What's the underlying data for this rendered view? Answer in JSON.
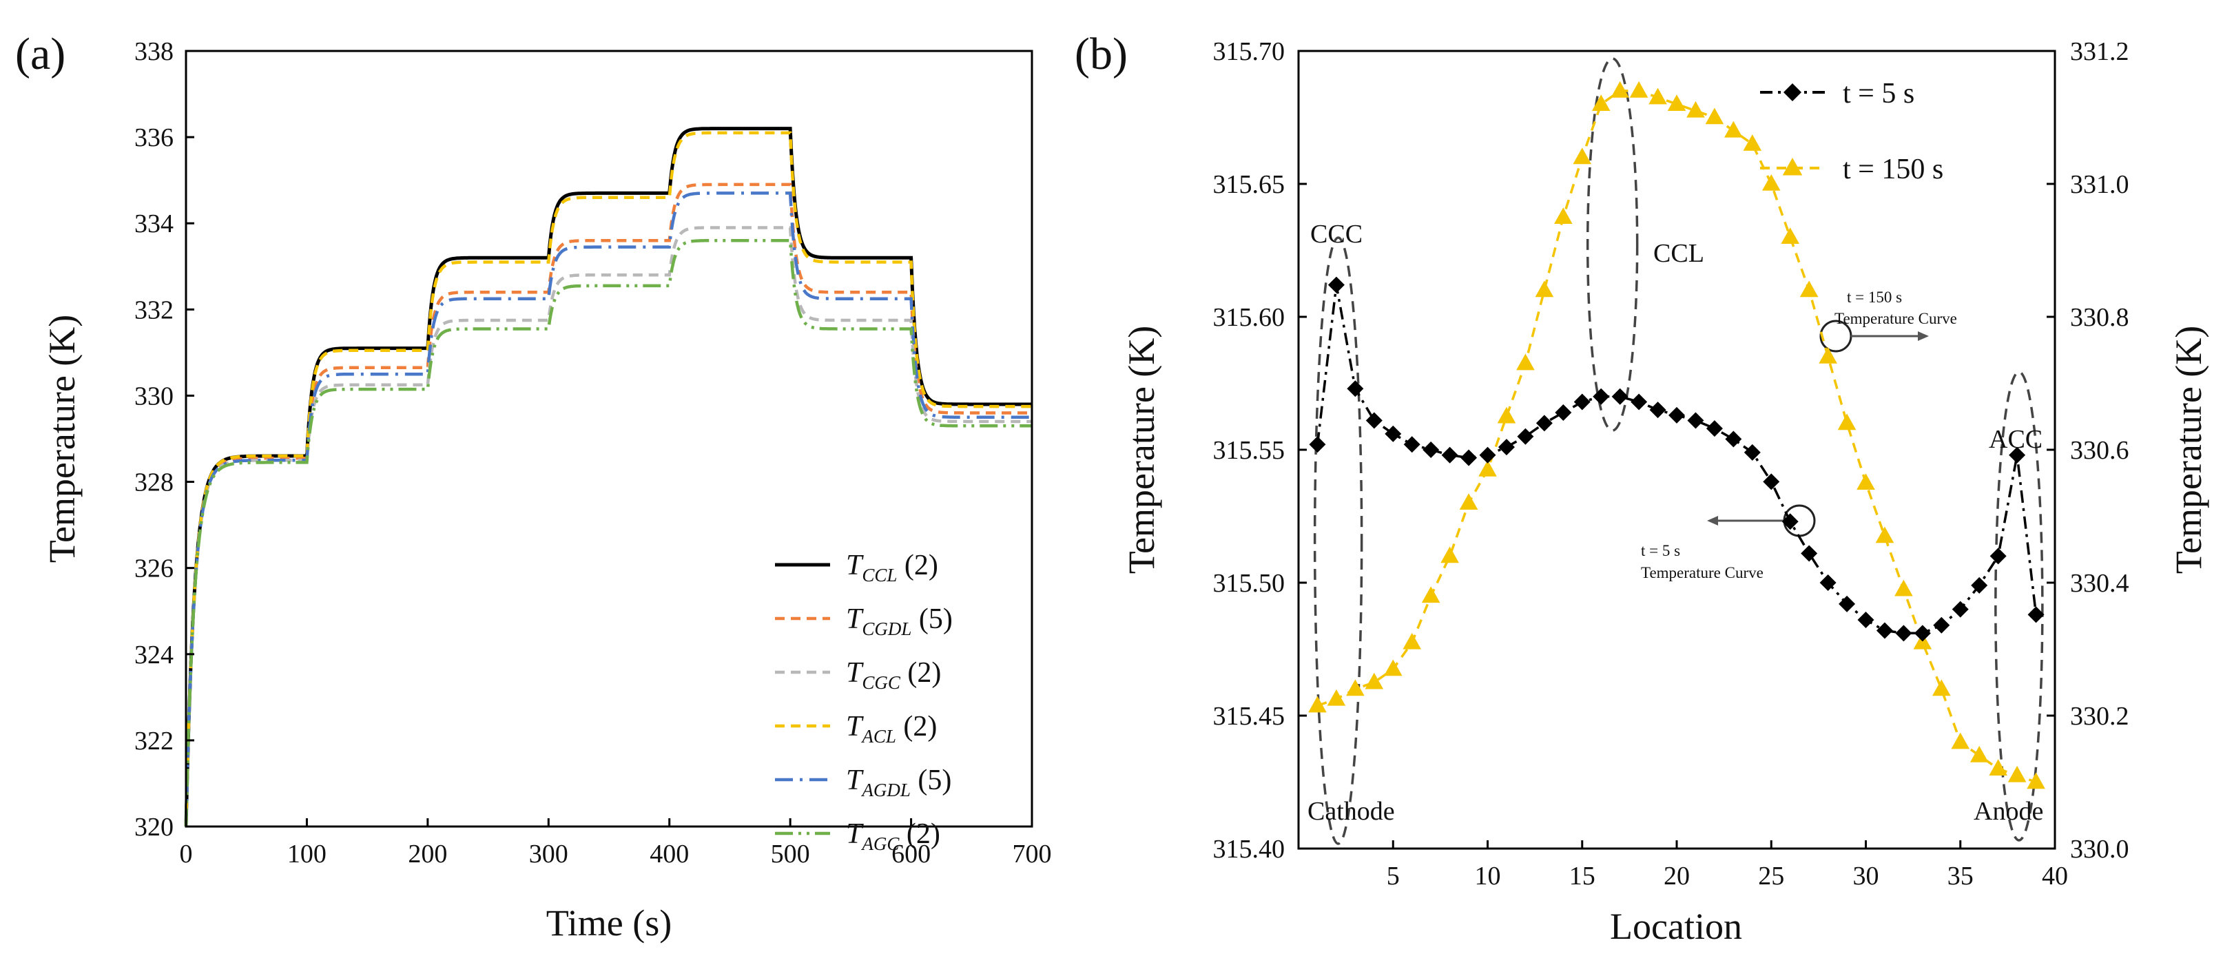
{
  "panels": {
    "a": {
      "label": "(a)"
    },
    "b": {
      "label": "(b)"
    }
  },
  "colors": {
    "ccl": "#000000",
    "cgdl": "#f07f3c",
    "cgc": "#b8b8b8",
    "acl": "#f5c400",
    "agdl": "#4a78c9",
    "agc": "#6fb04a",
    "t5": "#000000",
    "t150": "#f5c400"
  },
  "chart_data": [
    {
      "type": "line",
      "title": "",
      "xlabel": "Time (s)",
      "ylabel": "Temperature (K)",
      "xlim": [
        0,
        700
      ],
      "ylim": [
        320,
        338
      ],
      "xticks": [
        "0",
        "100",
        "200",
        "300",
        "400",
        "500",
        "600",
        "700"
      ],
      "yticks": [
        "320",
        "322",
        "324",
        "326",
        "328",
        "330",
        "332",
        "334",
        "336",
        "338"
      ],
      "x_steps": [
        0,
        100,
        200,
        300,
        400,
        500,
        600,
        700
      ],
      "series": [
        {
          "key": "ccl",
          "name": "T",
          "sub": "CCL",
          "suffix": "(2)",
          "style": "solid",
          "start": 320.0,
          "levels": [
            328.6,
            331.1,
            333.2,
            334.7,
            336.2,
            333.2,
            329.8
          ]
        },
        {
          "key": "cgdl",
          "name": "T",
          "sub": "CGDL",
          "suffix": "(5)",
          "style": "dash",
          "start": 320.0,
          "levels": [
            328.55,
            330.65,
            332.4,
            333.6,
            334.9,
            332.4,
            329.6
          ]
        },
        {
          "key": "cgc",
          "name": "T",
          "sub": "CGC",
          "suffix": "(2)",
          "style": "dash",
          "start": 320.0,
          "levels": [
            328.5,
            330.25,
            331.75,
            332.8,
            333.9,
            331.75,
            329.4
          ]
        },
        {
          "key": "acl",
          "name": "T",
          "sub": "ACL",
          "suffix": "(2)",
          "style": "dash",
          "start": 320.0,
          "levels": [
            328.6,
            331.05,
            333.1,
            334.6,
            336.1,
            333.1,
            329.75
          ]
        },
        {
          "key": "agdl",
          "name": "T",
          "sub": "AGDL",
          "suffix": "(5)",
          "style": "dashdot",
          "start": 320.0,
          "levels": [
            328.5,
            330.5,
            332.25,
            333.45,
            334.7,
            332.25,
            329.5
          ]
        },
        {
          "key": "agc",
          "name": "T",
          "sub": "AGC",
          "suffix": "(2)",
          "style": "dashdotdot",
          "start": 320.0,
          "levels": [
            328.45,
            330.15,
            331.55,
            332.55,
            333.6,
            331.55,
            329.3
          ]
        }
      ]
    },
    {
      "type": "line",
      "title": "",
      "xlabel": "Location",
      "ylabel_left": "Temperature (K)",
      "ylabel_right": "Temperature (K)",
      "xlim": [
        0,
        40
      ],
      "ylim_left": [
        315.4,
        315.7
      ],
      "ylim_right": [
        330.0,
        331.2
      ],
      "xticks": [
        "5",
        "10",
        "15",
        "20",
        "25",
        "30",
        "35",
        "40"
      ],
      "yticks_left": [
        "315.40",
        "315.45",
        "315.50",
        "315.55",
        "315.60",
        "315.65",
        "315.70"
      ],
      "yticks_right": [
        "330.0",
        "330.2",
        "330.4",
        "330.6",
        "330.8",
        "331.0",
        "331.2"
      ],
      "series": [
        {
          "key": "t5",
          "name": "t = 5 s",
          "axis": "left",
          "marker": "diamond",
          "x": [
            1,
            2,
            3,
            4,
            5,
            6,
            7,
            8,
            9,
            10,
            11,
            12,
            13,
            14,
            15,
            16,
            17,
            18,
            19,
            20,
            21,
            22,
            23,
            24,
            25,
            26,
            27,
            28,
            29,
            30,
            31,
            32,
            33,
            34,
            35,
            36,
            37,
            38,
            39
          ],
          "y": [
            315.552,
            315.612,
            315.573,
            315.561,
            315.556,
            315.552,
            315.55,
            315.548,
            315.547,
            315.548,
            315.551,
            315.555,
            315.56,
            315.564,
            315.568,
            315.57,
            315.57,
            315.568,
            315.565,
            315.563,
            315.561,
            315.558,
            315.554,
            315.549,
            315.538,
            315.523,
            315.511,
            315.5,
            315.492,
            315.486,
            315.482,
            315.481,
            315.481,
            315.484,
            315.49,
            315.499,
            315.51,
            315.548,
            315.488
          ]
        },
        {
          "key": "t150",
          "name": "t = 150 s",
          "axis": "right",
          "marker": "triangle",
          "x": [
            1,
            2,
            3,
            4,
            5,
            6,
            7,
            8,
            9,
            10,
            11,
            12,
            13,
            14,
            15,
            16,
            17,
            18,
            19,
            20,
            21,
            22,
            23,
            24,
            25,
            26,
            27,
            28,
            29,
            30,
            31,
            32,
            33,
            34,
            35,
            36,
            37,
            38,
            39
          ],
          "y": [
            330.215,
            330.225,
            330.24,
            330.25,
            330.27,
            330.31,
            330.38,
            330.44,
            330.52,
            330.57,
            330.65,
            330.73,
            330.84,
            330.95,
            331.04,
            331.12,
            331.14,
            331.14,
            331.13,
            331.12,
            331.11,
            331.1,
            331.08,
            331.06,
            331.0,
            330.92,
            330.84,
            330.74,
            330.64,
            330.55,
            330.47,
            330.39,
            330.31,
            330.24,
            330.16,
            330.14,
            330.12,
            330.11,
            330.1
          ]
        }
      ],
      "annotations": {
        "ccc": "CCC",
        "ccl": "CCL",
        "acc": "ACC",
        "cathode": "Cathode",
        "anode": "Anode",
        "t150_line1": "t = 150 s",
        "t150_line2": "Temperature Curve",
        "t5_line1": "t = 5 s",
        "t5_line2": "Temperature Curve"
      }
    }
  ]
}
